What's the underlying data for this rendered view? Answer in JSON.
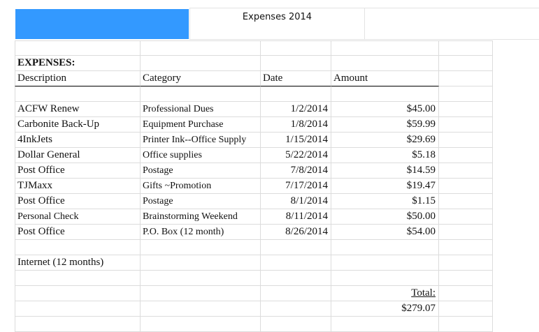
{
  "banner": {
    "title": "Expenses 2014",
    "accent_color": "#3399ff"
  },
  "sheet": {
    "section_label": "EXPENSES:",
    "headers": [
      "Description",
      "Category",
      "Date",
      "Amount"
    ],
    "rows": [
      {
        "description": "ACFW Renew",
        "category": "Professional Dues",
        "date": "1/2/2014",
        "amount": "$45.00"
      },
      {
        "description": "Carbonite Back-Up",
        "category": "Equipment Purchase",
        "date": "1/8/2014",
        "amount": "$59.99"
      },
      {
        "description": "4InkJets",
        "category": "Printer Ink--Office Supply",
        "date": "1/15/2014",
        "amount": "$29.69"
      },
      {
        "description": "Dollar General",
        "category": "Office supplies",
        "date": "5/22/2014",
        "amount": "$5.18"
      },
      {
        "description": "Post Office",
        "category": "Postage",
        "date": "7/8/2014",
        "amount": "$14.59"
      },
      {
        "description": "TJMaxx",
        "category": "Gifts ~Promotion",
        "date": "7/17/2014",
        "amount": "$19.47"
      },
      {
        "description": "Post Office",
        "category": "Postage",
        "date": "8/1/2014",
        "amount": "$1.15"
      },
      {
        "description": "Personal Check",
        "category": "Brainstorming Weekend",
        "date": "8/11/2014",
        "amount": "$50.00"
      },
      {
        "description": "Post Office",
        "category": "P.O. Box (12 month)",
        "date": "8/26/2014",
        "amount": "$54.00"
      }
    ],
    "extra_item": "Internet (12 months)",
    "total_label": "Total:",
    "total_value": "$279.07"
  }
}
